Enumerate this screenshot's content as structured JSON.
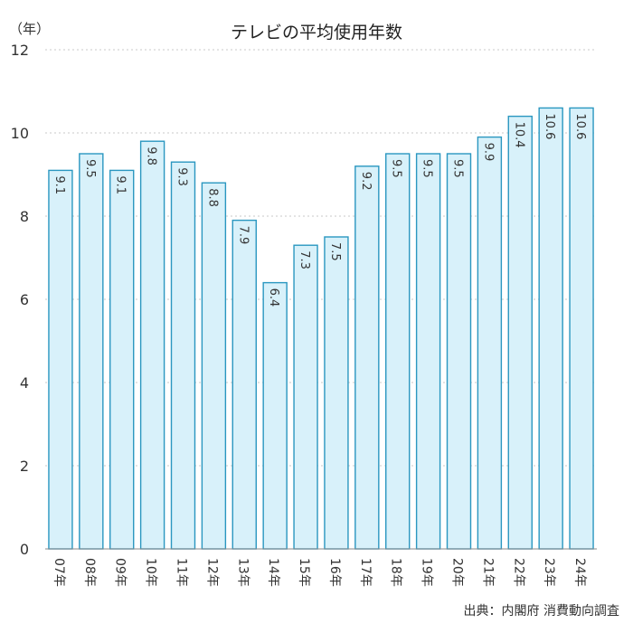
{
  "chart_data": {
    "type": "bar",
    "title": "テレビの平均使用年数",
    "unit_label": "（年）",
    "categories": [
      "07年",
      "08年",
      "09年",
      "10年",
      "11年",
      "12年",
      "13年",
      "14年",
      "15年",
      "16年",
      "17年",
      "18年",
      "19年",
      "20年",
      "21年",
      "22年",
      "23年",
      "24年"
    ],
    "values": [
      9.1,
      9.5,
      9.1,
      9.8,
      9.3,
      8.8,
      7.9,
      6.4,
      7.3,
      7.5,
      9.2,
      9.5,
      9.5,
      9.5,
      9.9,
      10.4,
      10.6,
      10.6
    ],
    "data_labels": [
      "9.1",
      "9.5",
      "9.1",
      "9.8",
      "9.3",
      "8.8",
      "7.9",
      "6.4",
      "7.3",
      "7.5",
      "9.2",
      "9.5",
      "9.5",
      "9.5",
      "9.9",
      "10.4",
      "10.6",
      "10.6"
    ],
    "yticks": [
      "0",
      "2",
      "4",
      "6",
      "8",
      "10",
      "12"
    ],
    "ylim": [
      0,
      12
    ],
    "grid": true,
    "source": "出典：内閣府 消費動向調査",
    "colors": {
      "bar_fill": "#d8f1fa",
      "bar_stroke": "#2a97c0",
      "grid": "#c9c9c9"
    }
  }
}
